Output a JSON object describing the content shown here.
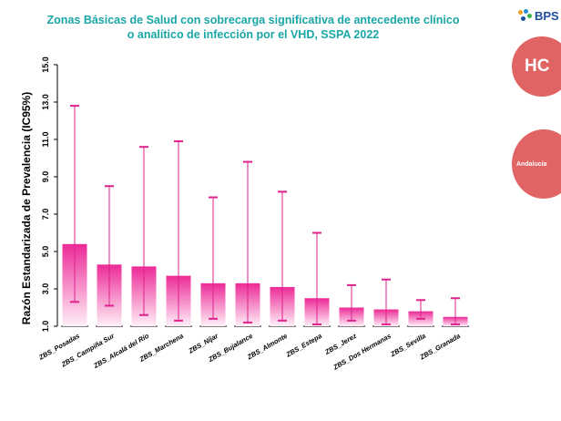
{
  "header": {
    "title_line1": "Zonas Básicas de Salud con sobrecarga significativa de antecedente clínico",
    "title_line2": "o analítico de infección por el VHD, SSPA 2022"
  },
  "logos": {
    "bps": "BPS",
    "hc": "HC",
    "andalucia": "Andalucía"
  },
  "colors": {
    "title": "#1aa6a6",
    "bar_top": "#ec2a97",
    "bar_bottom": "#fff0f8",
    "error_bar": "#e0208d",
    "badge": "#e06464"
  },
  "chart_data": {
    "type": "bar",
    "title": "Zonas Básicas de Salud con sobrecarga significativa de antecedente clínico o analítico de infección por el VHD, SSPA 2022",
    "ylabel": "Razón Estandarizada de Prevalencia (IC95%)",
    "xlabel": "",
    "ylim": [
      1.0,
      15.0
    ],
    "yticks": [
      "1.0",
      "3.0",
      "5.0",
      "7.0",
      "9.0",
      "11.0",
      "13.0",
      "15.0"
    ],
    "categories": [
      "ZBS_Posadas",
      "ZBS_Campiña Sur",
      "ZBS_Alcalá del Río",
      "ZBS_Marchena",
      "ZBS_Níjar",
      "ZBS_Bujalance",
      "ZBS_Almonte",
      "ZBS_Estepa",
      "ZBS_Jerez",
      "ZBS_Dos Hermanas",
      "ZBS_Sevilla",
      "ZBS_Granada"
    ],
    "series": [
      {
        "values": [
          5.4,
          4.3,
          4.2,
          3.7,
          3.3,
          3.3,
          3.1,
          2.5,
          2.0,
          1.9,
          1.8,
          1.5
        ],
        "ci_lower": [
          2.3,
          2.1,
          1.6,
          1.3,
          1.4,
          1.2,
          1.3,
          1.1,
          1.3,
          1.1,
          1.4,
          1.1
        ],
        "ci_upper": [
          12.8,
          8.5,
          10.6,
          10.9,
          7.9,
          9.8,
          8.2,
          6.0,
          3.2,
          3.5,
          2.4,
          2.5
        ]
      }
    ],
    "grid": false,
    "legend": "none"
  }
}
